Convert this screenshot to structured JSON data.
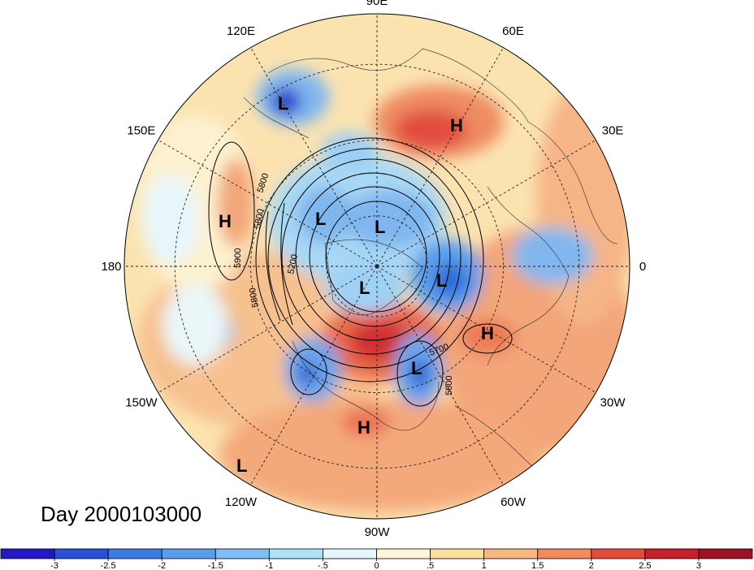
{
  "map": {
    "longitude_labels": [
      "90E",
      "60E",
      "30E",
      "0",
      "30W",
      "60W",
      "90W",
      "120W",
      "150W",
      "180",
      "150E",
      "120E"
    ],
    "contour_labels": [
      "5800",
      "5800",
      "5900",
      "5800",
      "5200",
      "5700",
      "5800"
    ],
    "centers": [
      {
        "type": "L"
      },
      {
        "type": "H"
      },
      {
        "type": "H"
      },
      {
        "type": "L"
      },
      {
        "type": "L"
      },
      {
        "type": "L"
      },
      {
        "type": "L"
      },
      {
        "type": "H"
      },
      {
        "type": "L"
      },
      {
        "type": "H"
      },
      {
        "type": "L"
      }
    ]
  },
  "title": "Day 2000103000",
  "colorbar": {
    "labels": [
      "-3",
      "-2.5",
      "-2",
      "-1.5",
      "-1",
      "-.5",
      "0",
      ".5",
      "1",
      "1.5",
      "2",
      "2.5",
      "3"
    ],
    "colors": [
      "#2317c8",
      "#2a4fd8",
      "#3c7ae4",
      "#5a9ded",
      "#7fbdf3",
      "#aee0f7",
      "#e4f5fb",
      "#fdf6d6",
      "#fbdf9e",
      "#f7b782",
      "#f08a5f",
      "#e24b3c",
      "#c81f2c",
      "#9e1024"
    ]
  }
}
